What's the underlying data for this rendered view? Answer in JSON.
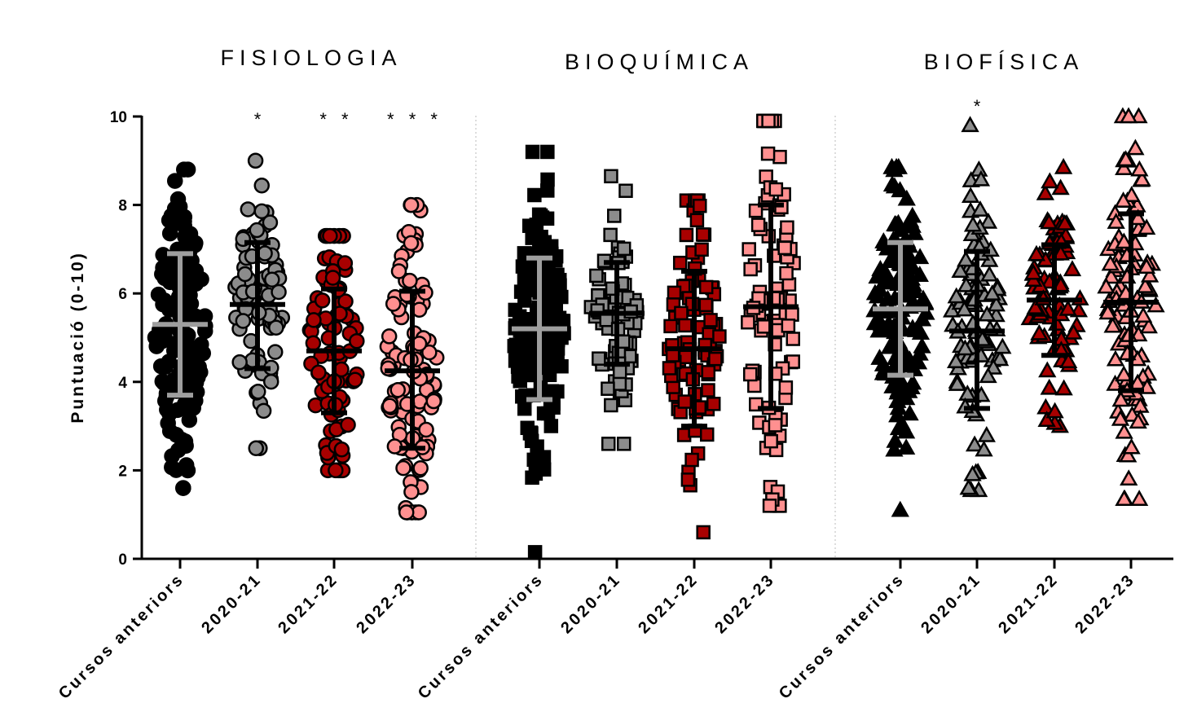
{
  "chart_data": {
    "type": "scatter",
    "ylabel": "Puntuació (0-10)",
    "ylim": [
      0,
      10
    ],
    "yticks": [
      "0",
      "2",
      "4",
      "6",
      "8",
      "10"
    ],
    "categories": [
      "Cursos anteriors",
      "2020-21",
      "2021-22",
      "2022-23"
    ],
    "colors": {
      "Cursos anteriors": "#000000",
      "2020-21": "#8c8c8c",
      "2021-22": "#a80000",
      "2022-23": "#ff9090",
      "error_bar_first": "#9e9e9e",
      "error_bar_other": "#000000"
    },
    "panels": [
      {
        "title": "FISIOLOGIA",
        "marker": "circle",
        "significance": [
          "",
          "*",
          "**",
          "***"
        ],
        "groups": [
          {
            "category": "Cursos anteriors",
            "mean": 5.3,
            "sd_low": 3.7,
            "sd_high": 6.9,
            "n": 150,
            "min": 1.6,
            "max": 8.8
          },
          {
            "category": "2020-21",
            "mean": 5.75,
            "sd_low": 4.3,
            "sd_high": 7.15,
            "n": 85,
            "min": 2.5,
            "max": 9.0
          },
          {
            "category": "2021-22",
            "mean": 4.7,
            "sd_low": 3.3,
            "sd_high": 6.1,
            "n": 85,
            "min": 2.0,
            "max": 7.3
          },
          {
            "category": "2022-23",
            "mean": 4.25,
            "sd_low": 2.5,
            "sd_high": 6.05,
            "n": 110,
            "min": 1.05,
            "max": 8.0
          }
        ]
      },
      {
        "title": "BIOQUÍMICA",
        "marker": "square",
        "significance": [
          "",
          "",
          "",
          ""
        ],
        "groups": [
          {
            "category": "Cursos anteriors",
            "mean": 5.2,
            "sd_low": 3.6,
            "sd_high": 6.8,
            "n": 170,
            "min": 0.15,
            "max": 9.2
          },
          {
            "category": "2020-21",
            "mean": 5.55,
            "sd_low": 4.4,
            "sd_high": 6.7,
            "n": 75,
            "min": 2.6,
            "max": 8.65
          },
          {
            "category": "2021-22",
            "mean": 4.75,
            "sd_low": 3.0,
            "sd_high": 6.5,
            "n": 90,
            "min": 0.6,
            "max": 8.1
          },
          {
            "category": "2022-23",
            "mean": 5.7,
            "sd_low": 3.4,
            "sd_high": 8.0,
            "n": 90,
            "min": 1.2,
            "max": 9.9
          }
        ]
      },
      {
        "title": "BIOFÍSICA",
        "marker": "triangle",
        "significance": [
          "",
          "*",
          "",
          ""
        ],
        "groups": [
          {
            "category": "Cursos anteriors",
            "mean": 5.65,
            "sd_low": 4.15,
            "sd_high": 7.15,
            "n": 150,
            "min": 1.1,
            "max": 8.85
          },
          {
            "category": "2020-21",
            "mean": 5.15,
            "sd_low": 3.4,
            "sd_high": 6.95,
            "n": 95,
            "min": 1.55,
            "max": 9.8
          },
          {
            "category": "2021-22",
            "mean": 5.85,
            "sd_low": 4.6,
            "sd_high": 7.1,
            "n": 85,
            "min": 3.0,
            "max": 8.85
          },
          {
            "category": "2022-23",
            "mean": 5.8,
            "sd_low": 3.8,
            "sd_high": 7.8,
            "n": 110,
            "min": 1.35,
            "max": 10.0
          }
        ]
      }
    ],
    "grid": false,
    "legend": "none"
  }
}
